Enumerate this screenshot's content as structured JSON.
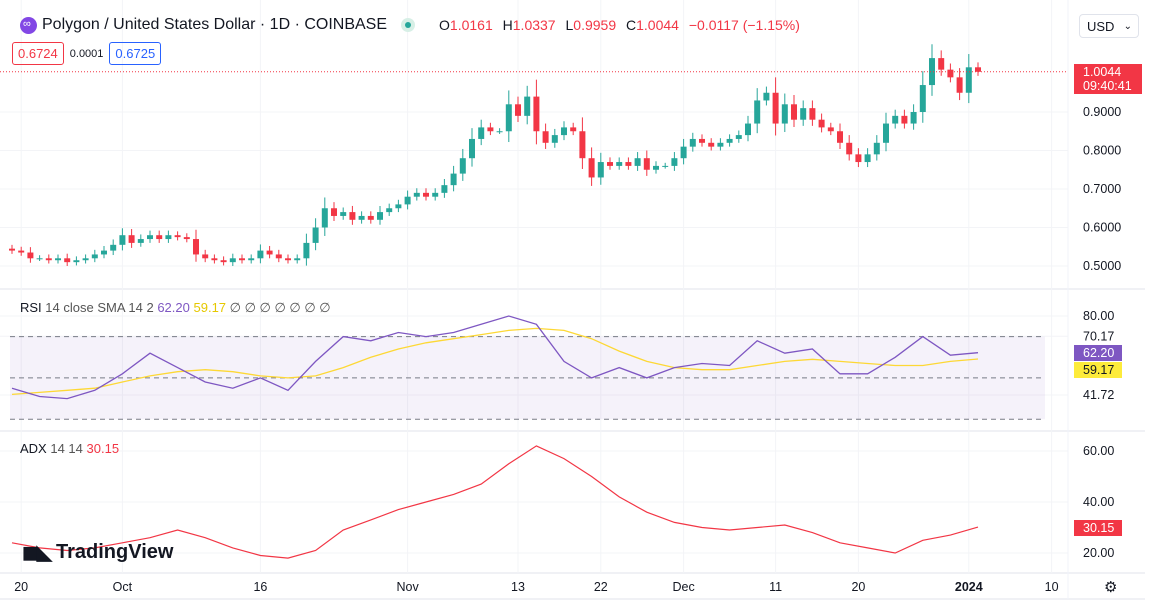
{
  "header": {
    "symbol": "Polygon / United States Dollar · 1D · COINBASE",
    "o_label": "O",
    "o": "1.0161",
    "h_label": "H",
    "h": "1.0337",
    "l_label": "L",
    "l": "0.9959",
    "c_label": "C",
    "c": "1.0044",
    "change": "−0.0117 (−1.15%)"
  },
  "bid_ask": {
    "sell": "0.6724",
    "spread": "0.0001",
    "buy": "0.6725"
  },
  "currency": "USD",
  "price_tag": {
    "price": "1.0044",
    "countdown": "09:40:41"
  },
  "rsi_legend": {
    "name": "RSI",
    "params": "14 close SMA 14 2",
    "rsi": "62.20",
    "sma": "59.17",
    "extra": "∅ ∅ ∅ ∅ ∅ ∅ ∅"
  },
  "adx_legend": {
    "name": "ADX",
    "params": "14 14",
    "value": "30.15"
  },
  "branding": "TradingView",
  "colors": {
    "up": "#26a69a",
    "down": "#f23645",
    "rsi": "#7e57c2",
    "rsi_sma": "#fdd835",
    "adx": "#f23645"
  },
  "chart_data": [
    {
      "type": "candlestick",
      "name": "price",
      "start_date": "2023-09-19",
      "interval": "1D",
      "close": [
        0.54,
        0.535,
        0.52,
        0.52,
        0.515,
        0.52,
        0.51,
        0.515,
        0.52,
        0.53,
        0.54,
        0.555,
        0.58,
        0.56,
        0.57,
        0.58,
        0.57,
        0.58,
        0.575,
        0.57,
        0.53,
        0.52,
        0.515,
        0.51,
        0.52,
        0.515,
        0.52,
        0.54,
        0.53,
        0.52,
        0.515,
        0.52,
        0.56,
        0.6,
        0.65,
        0.63,
        0.64,
        0.62,
        0.63,
        0.62,
        0.64,
        0.65,
        0.66,
        0.68,
        0.69,
        0.68,
        0.69,
        0.71,
        0.74,
        0.78,
        0.83,
        0.86,
        0.85,
        0.85,
        0.92,
        0.89,
        0.94,
        0.85,
        0.82,
        0.84,
        0.86,
        0.85,
        0.78,
        0.73,
        0.77,
        0.76,
        0.77,
        0.76,
        0.78,
        0.75,
        0.76,
        0.76,
        0.78,
        0.81,
        0.83,
        0.82,
        0.81,
        0.82,
        0.83,
        0.84,
        0.87,
        0.93,
        0.95,
        0.87,
        0.92,
        0.88,
        0.91,
        0.88,
        0.86,
        0.85,
        0.82,
        0.79,
        0.77,
        0.79,
        0.82,
        0.87,
        0.89,
        0.87,
        0.9,
        0.97,
        1.04,
        1.01,
        0.99,
        0.95,
        1.0161,
        1.0044
      ],
      "yticks": [
        "0.5000",
        "0.6000",
        "0.7000",
        "0.8000",
        "0.9000"
      ],
      "ylim": [
        0.47,
        1.08
      ]
    },
    {
      "type": "line",
      "name": "RSI",
      "sample_every_days": 3,
      "rsi": [
        45,
        41,
        40,
        44,
        52,
        62,
        55,
        48,
        45,
        50,
        44,
        58,
        70,
        68,
        72,
        70,
        72,
        76,
        80,
        76,
        58,
        50,
        55,
        50,
        55,
        57,
        56,
        68,
        62,
        64,
        52,
        52,
        60,
        70,
        61,
        62.2
      ],
      "sma": [
        42,
        43,
        44,
        45,
        48,
        51,
        53,
        54,
        53,
        51,
        50,
        51,
        55,
        60,
        64,
        67,
        69,
        71,
        73,
        74,
        73,
        69,
        63,
        58,
        55,
        54,
        54,
        56,
        58,
        59,
        58,
        57,
        56,
        56,
        58,
        59.17
      ],
      "yticks": [
        "80.00",
        "70.17",
        "41.72"
      ],
      "bands": [
        70,
        50,
        30
      ]
    },
    {
      "type": "line",
      "name": "ADX",
      "sample_every_days": 3,
      "adx": [
        24,
        22,
        21,
        22,
        24,
        26,
        29,
        26,
        22,
        19,
        18,
        21,
        29,
        33,
        37,
        40,
        43,
        47,
        55,
        62,
        57,
        50,
        42,
        36,
        32,
        30,
        29,
        30,
        31,
        28,
        24,
        22,
        20,
        25,
        27,
        30.15
      ],
      "yticks": [
        "60.00",
        "40.00",
        "20.00"
      ]
    }
  ],
  "xaxis": {
    "ticks": [
      {
        "label": "20",
        "date": "2023-09-20"
      },
      {
        "label": "Oct",
        "date": "2023-10-01"
      },
      {
        "label": "16",
        "date": "2023-10-16"
      },
      {
        "label": "Nov",
        "date": "2023-11-01"
      },
      {
        "label": "13",
        "date": "2023-11-13"
      },
      {
        "label": "22",
        "date": "2023-11-22"
      },
      {
        "label": "Dec",
        "date": "2023-12-01"
      },
      {
        "label": "11",
        "date": "2023-12-11"
      },
      {
        "label": "20",
        "date": "2023-12-20"
      },
      {
        "label": "2024",
        "date": "2024-01-01"
      },
      {
        "label": "10",
        "date": "2024-01-10"
      }
    ]
  }
}
